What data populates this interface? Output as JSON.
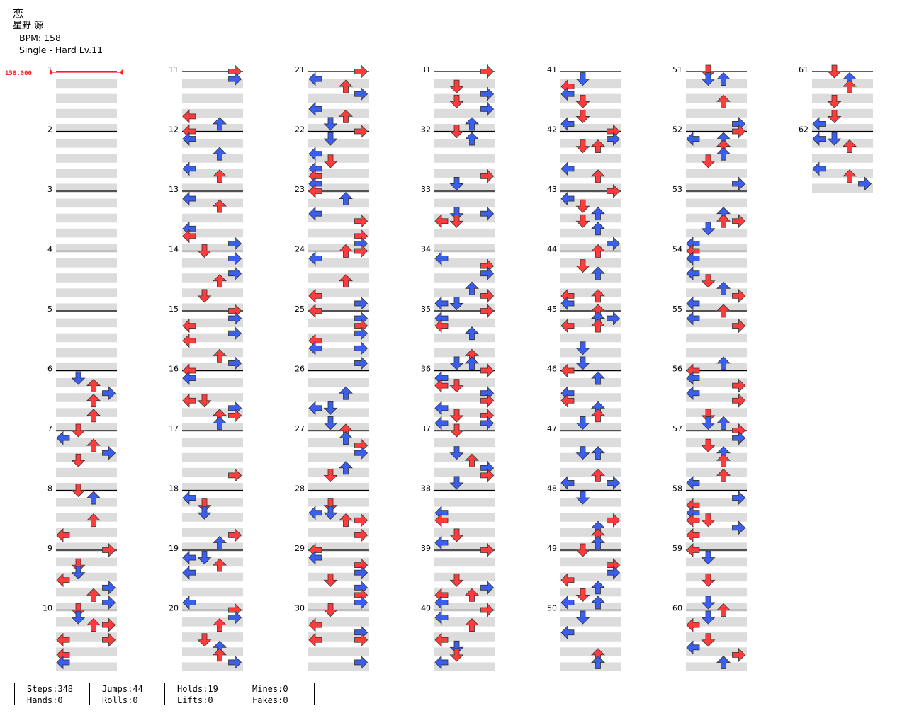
{
  "song": {
    "title": "恋",
    "artist": "星野 源",
    "bpm_label": "BPM: 158",
    "chart_label": "Single - Hard  Lv.11"
  },
  "bpm_marker": "158.000",
  "measure_numbers": [
    "1",
    "2",
    "3",
    "4",
    "5",
    "6",
    "7",
    "8",
    "9",
    "10",
    "11",
    "12",
    "13",
    "14",
    "15",
    "16",
    "17",
    "18",
    "19",
    "20",
    "21",
    "22",
    "23",
    "24",
    "25",
    "26",
    "27",
    "28",
    "29",
    "30",
    "31",
    "32",
    "33",
    "34",
    "35",
    "36",
    "37",
    "38",
    "39",
    "40",
    "41",
    "42",
    "43",
    "44",
    "45",
    "46",
    "47",
    "48",
    "49",
    "50",
    "51",
    "52",
    "53",
    "54",
    "55",
    "56",
    "57",
    "58",
    "59",
    "60",
    "61",
    "62"
  ],
  "colors": {
    "red": "#ff3b3b",
    "blue": "#3a5ef0",
    "yellow": "#f5e43a",
    "hold": "#7be07b",
    "row_shade": "#dcdcdc",
    "bpm": "#ff2020"
  },
  "stats": {
    "steps": "Steps:348",
    "jumps": "Jumps:44",
    "holds": "Holds:19",
    "mines": "Mines:0",
    "hands": "Hands:0",
    "rolls": "Rolls:0",
    "lifts": "Lifts:0",
    "fakes": "Fakes:0"
  }
}
